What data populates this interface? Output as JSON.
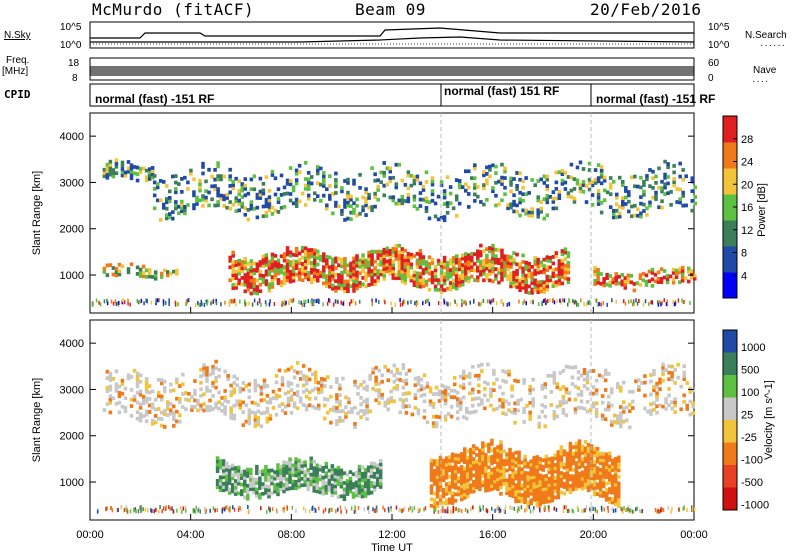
{
  "header": {
    "station": "McMurdo (fitACF)",
    "beam": "Beam 09",
    "date": "20/Feb/2016"
  },
  "strip": {
    "nsky_label": "N.Sky",
    "nsearch_label": "N.Search",
    "freq_label_1": "Freq.",
    "freq_label_2": "[MHz]",
    "nave_label": "Nave",
    "cpid_label": "CPID",
    "noise_ticks_left": [
      "10^5",
      "10^0"
    ],
    "noise_ticks_right": [
      "10^5",
      "10^0"
    ],
    "freq_ticks": [
      "18",
      "8"
    ],
    "nave_ticks": [
      "60",
      "0"
    ]
  },
  "cpid_segments": [
    {
      "text": "normal (fast) -151 RF",
      "start_hour": 0
    },
    {
      "text": "normal (fast) 151 RF",
      "start_hour": 14
    },
    {
      "text": "normal (fast) -151 RF",
      "start_hour": 20
    }
  ],
  "chart_data": [
    {
      "type": "heatmap",
      "title": "",
      "ylabel": "Slant Range [km]",
      "xlabel": "",
      "x_range_hours": [
        0,
        24
      ],
      "ylim": [
        180,
        4500
      ],
      "yticks": [
        1000,
        2000,
        3000,
        4000
      ],
      "colorbar": {
        "label": "Power [dB]",
        "ticks": [
          "4",
          "8",
          "12",
          "16",
          "20",
          "24",
          "28"
        ],
        "colors": [
          "#0000ff",
          "#1f4aa8",
          "#3a7f5a",
          "#5cc040",
          "#f2c43a",
          "#f07a1a",
          "#e02020"
        ]
      },
      "bands": [
        {
          "range_km": [
            3000,
            3500
          ],
          "x_hours": [
            0.5,
            2.5
          ],
          "level": "low-mid"
        },
        {
          "range_km": [
            2300,
            3400
          ],
          "x_hours": [
            2.5,
            24
          ],
          "level": "low"
        },
        {
          "range_km": [
            700,
            1600
          ],
          "x_hours": [
            5.5,
            19
          ],
          "level": "high"
        },
        {
          "range_km": [
            900,
            1300
          ],
          "x_hours": [
            0.5,
            3.5
          ],
          "level": "mid"
        },
        {
          "range_km": [
            700,
            1200
          ],
          "x_hours": [
            20,
            24
          ],
          "level": "mid"
        }
      ]
    },
    {
      "type": "heatmap",
      "title": "",
      "ylabel": "Slant Range [km]",
      "xlabel": "Time UT",
      "x_range_hours": [
        0,
        24
      ],
      "xticks": [
        "00:00",
        "04:00",
        "08:00",
        "12:00",
        "16:00",
        "20:00",
        "00:00"
      ],
      "ylim": [
        180,
        4500
      ],
      "yticks": [
        1000,
        2000,
        3000,
        4000
      ],
      "colorbar": {
        "label": "Velocity [m s^-1]",
        "ticks": [
          "1000",
          "500",
          "100",
          "25",
          "-25",
          "-100",
          "-500",
          "-1000"
        ],
        "colors": [
          "#1f4aa8",
          "#3a7f5a",
          "#5cc040",
          "#c8c8c8",
          "#f2c43a",
          "#f07a1a",
          "#e84020",
          "#d01010"
        ]
      },
      "bands": [
        {
          "range_km": [
            2300,
            3500
          ],
          "x_hours": [
            0.5,
            24
          ],
          "velocity": "near-zero"
        },
        {
          "range_km": [
            700,
            1500
          ],
          "x_hours": [
            5,
            11.5
          ],
          "velocity": "positive"
        },
        {
          "range_km": [
            600,
            1800
          ],
          "x_hours": [
            13.5,
            21
          ],
          "velocity": "negative"
        }
      ]
    }
  ],
  "time_axis": {
    "label": "Time UT",
    "ticks": [
      "00:00",
      "04:00",
      "08:00",
      "12:00",
      "16:00",
      "20:00",
      "00:00"
    ]
  }
}
